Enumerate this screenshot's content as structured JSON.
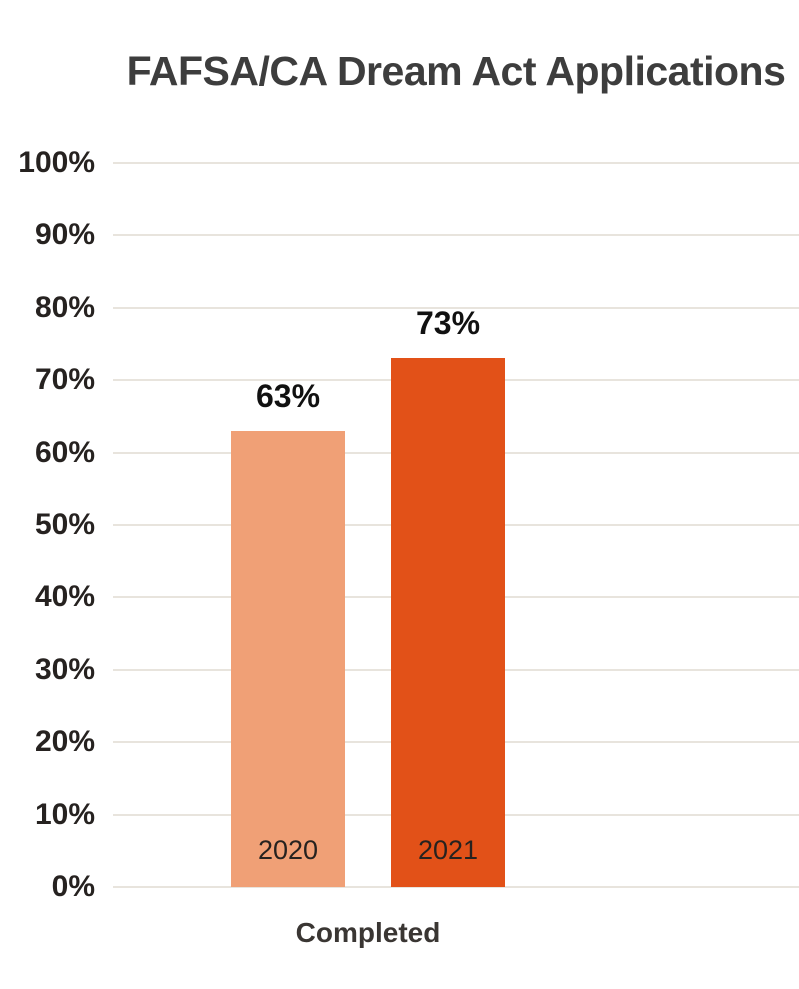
{
  "title": "FAFSA/CA Dream Act Applications",
  "chart_data": {
    "type": "bar",
    "title": "FAFSA/CA Dream Act Applications",
    "categories": [
      "Completed"
    ],
    "series": [
      {
        "name": "2020",
        "value": 63,
        "value_label": "63%",
        "color": "#f0a076"
      },
      {
        "name": "2021",
        "value": 73,
        "value_label": "73%",
        "color": "#e25118"
      }
    ],
    "xlabel": "",
    "ylabel": "",
    "ylim": [
      0,
      100
    ],
    "ytick_step": 10,
    "ytick_labels": [
      "0%",
      "10%",
      "20%",
      "30%",
      "40%",
      "50%",
      "60%",
      "70%",
      "80%",
      "90%",
      "100%"
    ],
    "grid": true,
    "gridline_color": "#e8e4dd",
    "legend": "none",
    "background_color": "#ffffff"
  }
}
